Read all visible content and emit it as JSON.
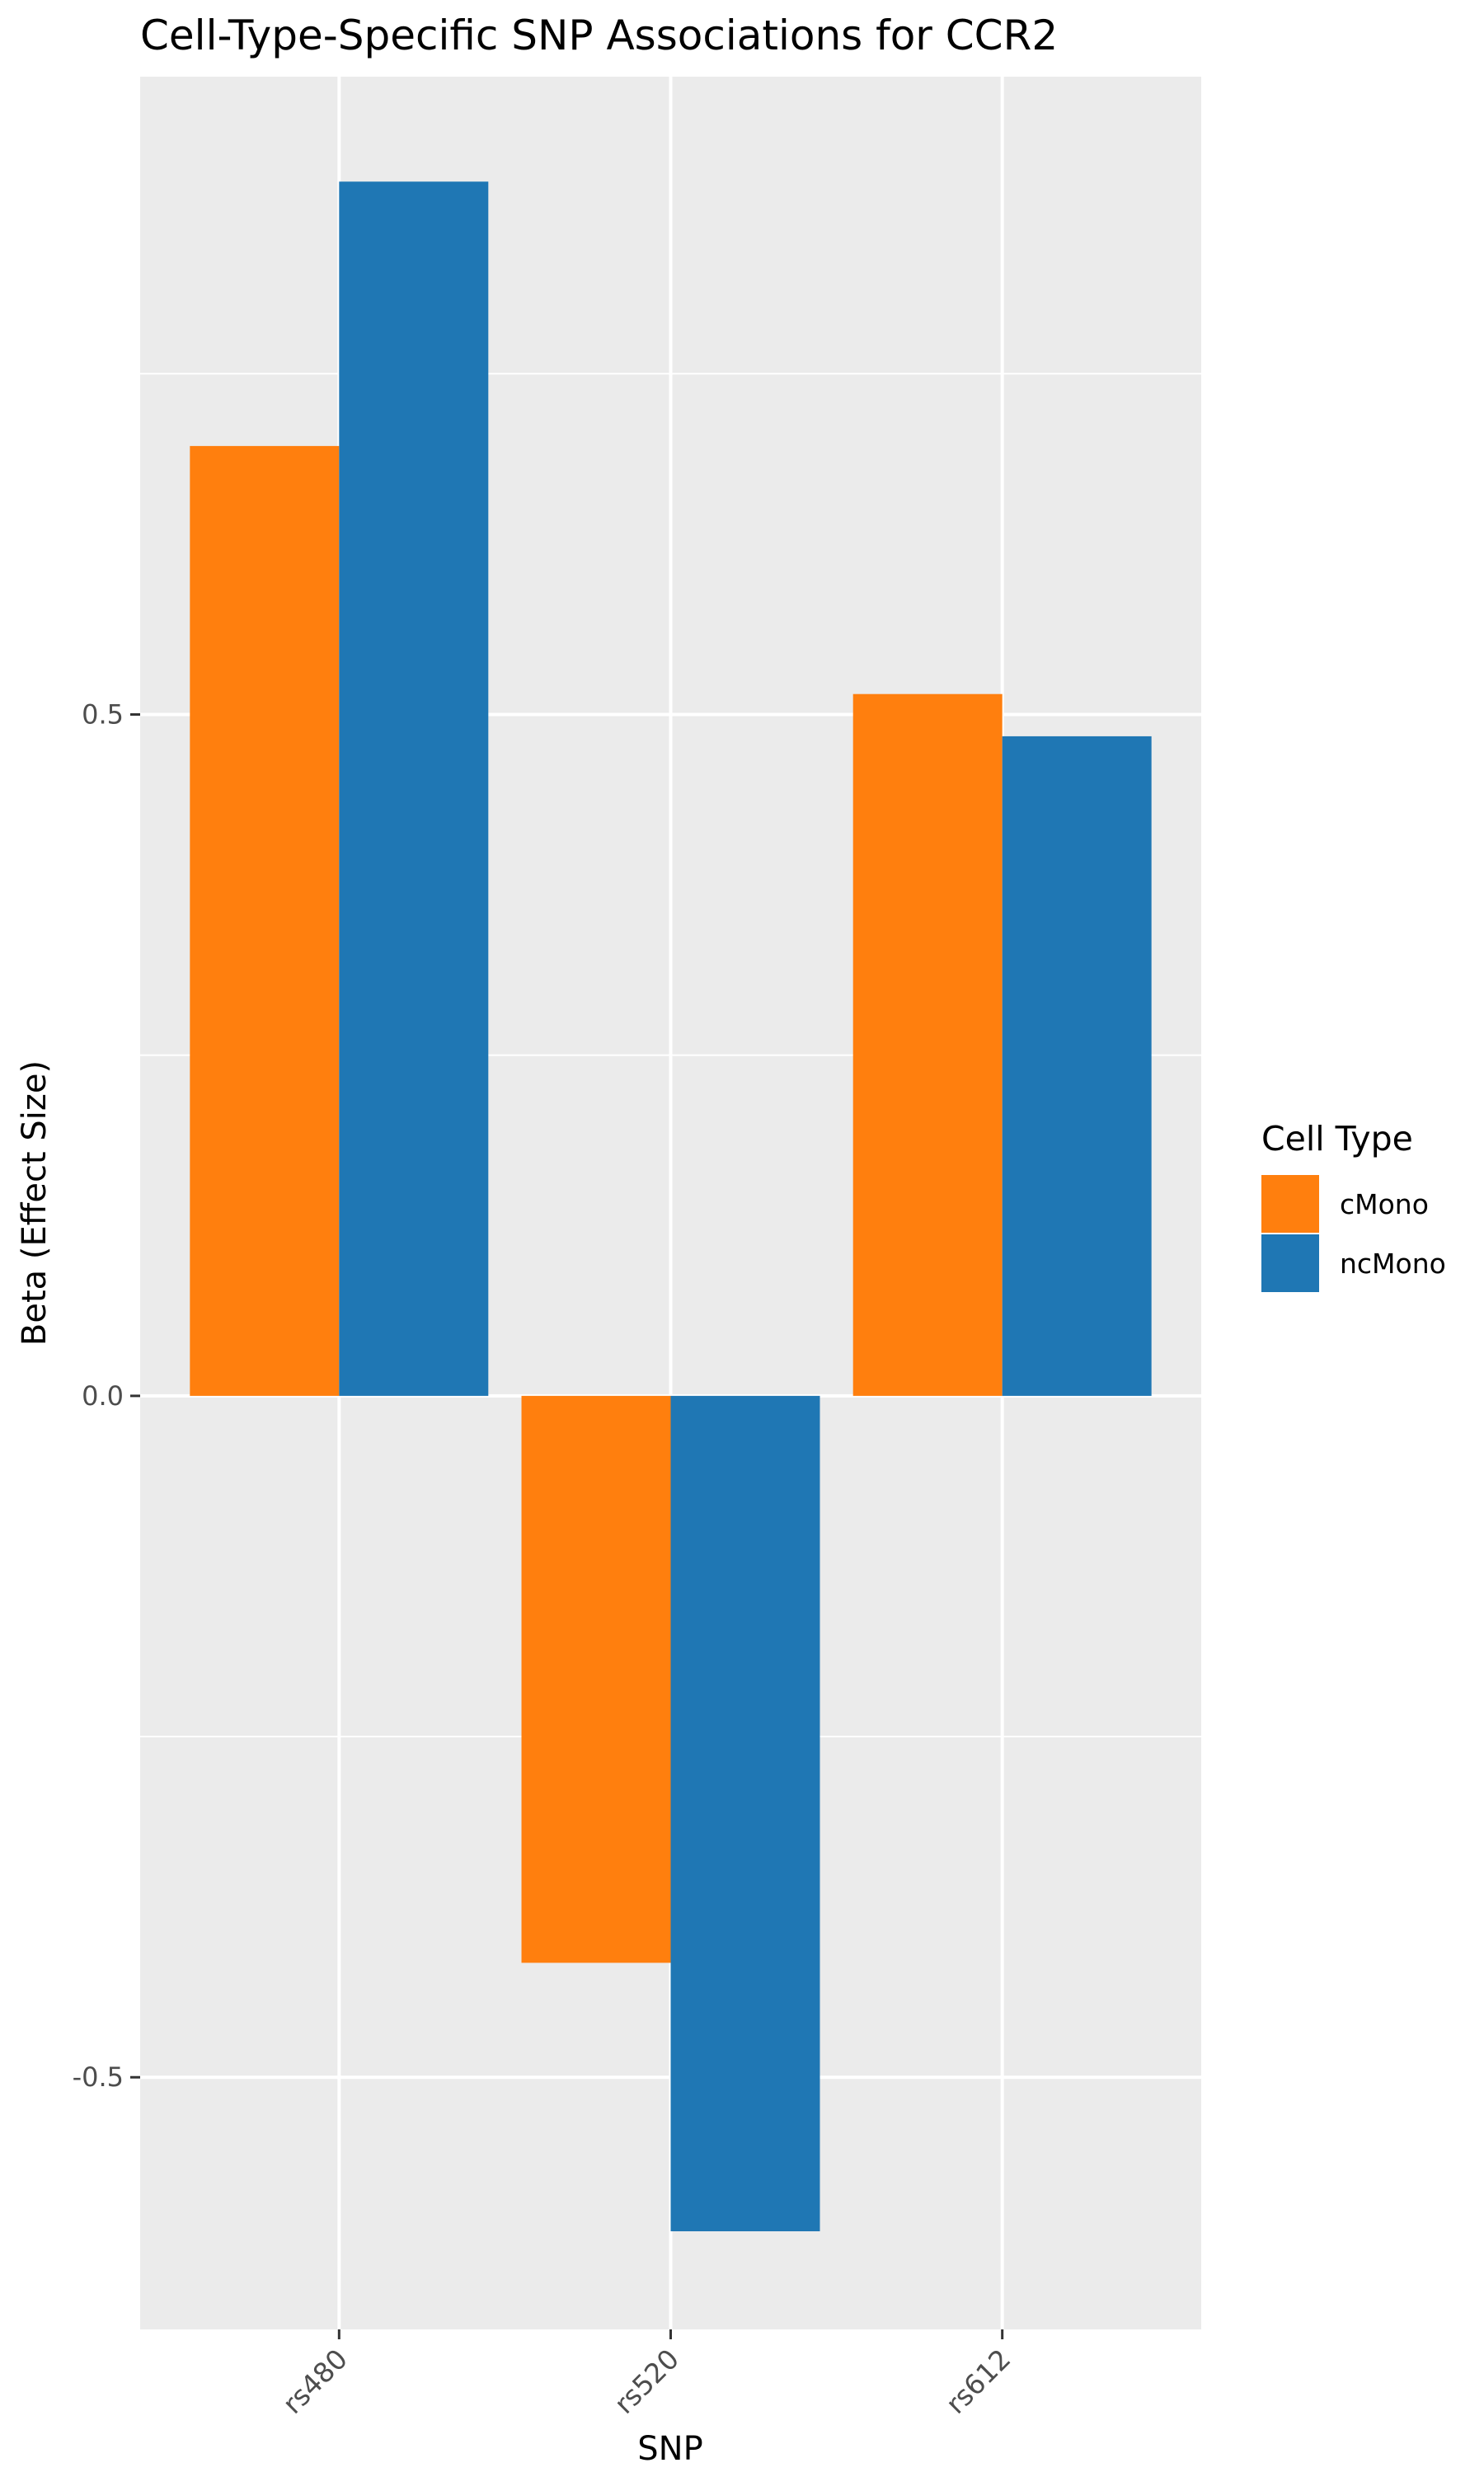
{
  "chart_data": {
    "type": "bar",
    "title": "Cell-Type-Specific SNP Associations for  CCR2",
    "xlabel": "SNP",
    "ylabel": "Beta (Effect Size)",
    "categories": [
      "rs480",
      "rs520",
      "rs612"
    ],
    "series": [
      {
        "name": "cMono",
        "color": "#ff7f0e",
        "values": [
          0.697,
          -0.416,
          0.515
        ]
      },
      {
        "name": "ncMono",
        "color": "#1f77b4",
        "values": [
          0.891,
          -0.613,
          0.484
        ]
      }
    ],
    "yticks": [
      -0.5,
      0.0,
      0.5
    ],
    "ytick_labels": [
      "-0.5",
      "0.0",
      "0.5"
    ],
    "ylim": [
      -0.685,
      0.968
    ],
    "grid": true,
    "legend": {
      "title": "Cell Type",
      "position": "right"
    }
  }
}
